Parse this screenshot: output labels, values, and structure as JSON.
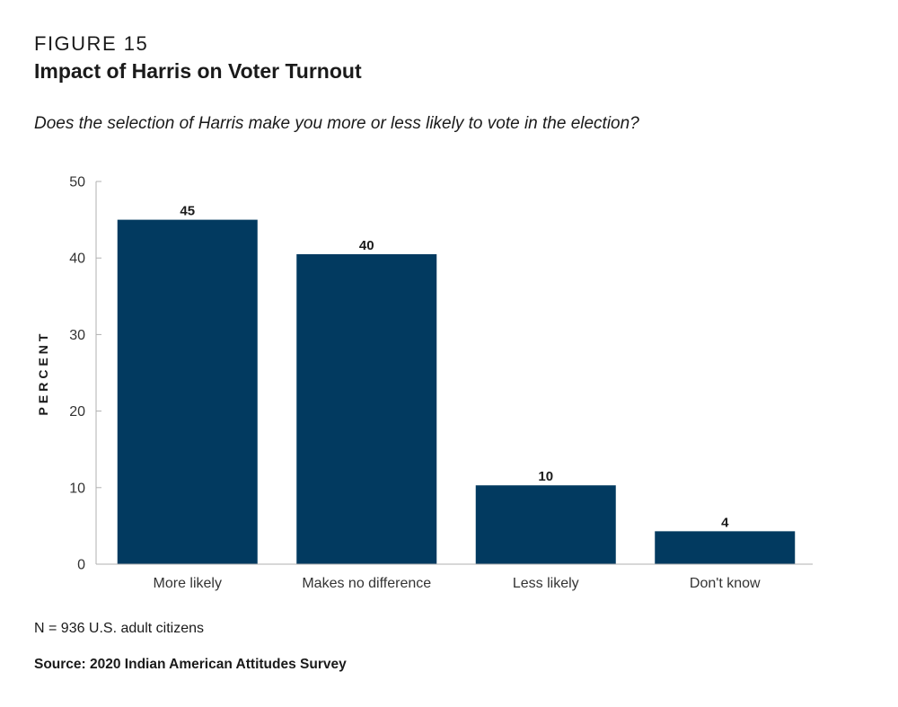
{
  "figure": {
    "label": "FIGURE 15",
    "title": "Impact of Harris on Voter Turnout",
    "subtitle": "Does the selection of Harris make you more or less likely to vote in the election?",
    "note": "N = 936 U.S. adult citizens",
    "source": "Source: 2020 Indian American Attitudes Survey"
  },
  "chart_data": {
    "type": "bar",
    "categories": [
      "More likely",
      "Makes no difference",
      "Less likely",
      "Don't know"
    ],
    "values": [
      45,
      40.5,
      10.3,
      4.3
    ],
    "data_labels": [
      "45",
      "40",
      "10",
      "4"
    ],
    "ylabel": "PERCENT",
    "xlabel": "",
    "ylim": [
      0,
      50
    ],
    "yticks": [
      0,
      10,
      20,
      30,
      40,
      50
    ],
    "grid": false,
    "legend": "none",
    "bar_color": "#023a60"
  }
}
